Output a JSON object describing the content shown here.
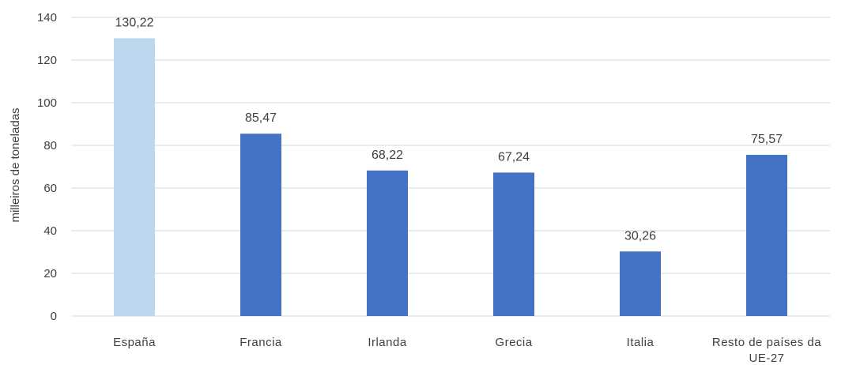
{
  "chart_data": {
    "type": "bar",
    "categories": [
      "España",
      "Francia",
      "Irlanda",
      "Grecia",
      "Italia",
      "Resto de países da UE-27"
    ],
    "category_lines": [
      [
        "España"
      ],
      [
        "Francia"
      ],
      [
        "Irlanda"
      ],
      [
        "Grecia"
      ],
      [
        "Italia"
      ],
      [
        "Resto de países da",
        "UE-27"
      ]
    ],
    "values": [
      130.22,
      85.47,
      68.22,
      67.24,
      30.26,
      75.57
    ],
    "data_labels": [
      "130,22",
      "85,47",
      "68,22",
      "67,24",
      "30,26",
      "75,57"
    ],
    "bar_colors": [
      "#bdd7ee",
      "#4472c4",
      "#4472c4",
      "#4472c4",
      "#4472c4",
      "#4472c4"
    ],
    "title": "",
    "xlabel": "",
    "ylabel": "milleiros de toneladas",
    "ylim": [
      0,
      140
    ],
    "yticks": [
      0,
      20,
      40,
      60,
      80,
      100,
      120,
      140
    ],
    "grid": true,
    "legend": "none"
  }
}
